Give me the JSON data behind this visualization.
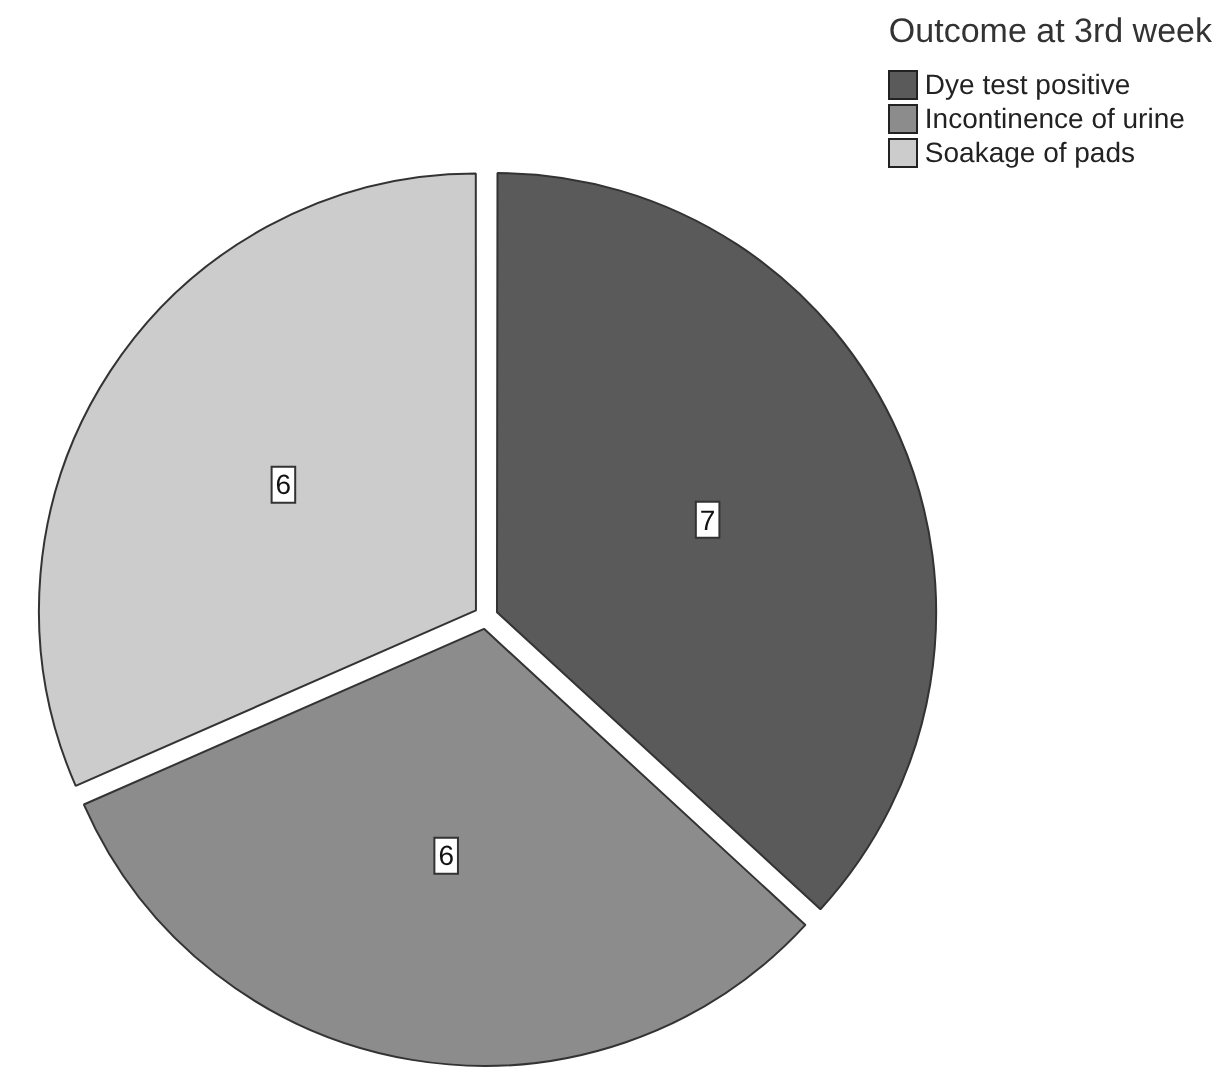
{
  "chart_data": {
    "type": "pie",
    "legend_title": "Outcome at 3rd week",
    "legend": "top right",
    "data_labels": true,
    "categories": [
      "Dye test positive",
      "Incontinence of urine",
      "Soakage of pads"
    ],
    "values": [
      7,
      6,
      6
    ],
    "colors": [
      "#5a5a5a",
      "#8c8c8c",
      "#cccccc"
    ]
  }
}
